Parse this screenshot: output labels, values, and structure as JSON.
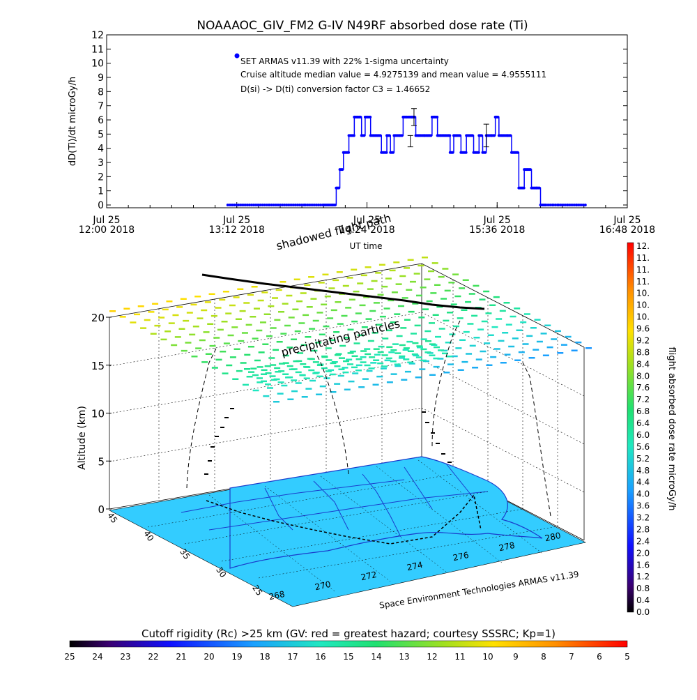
{
  "title": "NOAAAOC_GIV_FM2 G-IV    N49RF  absorbed dose rate (Ti)",
  "chart_data": [
    {
      "type": "line",
      "ylabel": "dD(Ti)/dt microGy/h",
      "xlabel": "UT time",
      "ylim": [
        0,
        12
      ],
      "xlim": [
        "12:00",
        "16:48"
      ],
      "yticks": [
        "0",
        "1",
        "2",
        "3",
        "4",
        "5",
        "6",
        "7",
        "8",
        "9",
        "10",
        "11",
        "12"
      ],
      "xtick_top": [
        "Jul 25",
        "Jul 25",
        "Jul 25",
        "Jul 25",
        "Jul 25"
      ],
      "xtick_bottom": [
        "12:00 2018",
        "13:12 2018",
        "14:24 2018",
        "15:36 2018",
        "16:48 2018"
      ],
      "legend": [
        "SET ARMAS v11.39 with 22% 1-sigma uncertainty",
        "Cruise altitude median value = 4.9275139 and mean value = 4.9555111",
        "D(si) -> D(ti) conversion factor C3 = 1.46652"
      ],
      "series": [
        {
          "color": "#0000ff",
          "x": [
            "13:07",
            "13:30",
            "13:50",
            "14:00",
            "14:05",
            "14:07",
            "14:09",
            "14:11",
            "14:14",
            "14:17",
            "14:19",
            "14:21",
            "14:23",
            "14:26",
            "14:28",
            "14:30",
            "14:32",
            "14:35",
            "14:37",
            "14:39",
            "14:42",
            "14:44",
            "14:46",
            "14:49",
            "14:51",
            "14:53",
            "14:56",
            "14:58",
            "15:00",
            "15:03",
            "15:05",
            "15:07",
            "15:10",
            "15:12",
            "15:14",
            "15:16",
            "15:19",
            "15:21",
            "15:23",
            "15:26",
            "15:28",
            "15:30",
            "15:33",
            "15:35",
            "15:37",
            "15:39",
            "15:42",
            "15:44",
            "15:46",
            "15:48",
            "15:51",
            "15:53",
            "15:55",
            "15:58",
            "16:00",
            "16:03",
            "16:07",
            "16:10",
            "16:15",
            "16:20",
            "16:25"
          ],
          "y": [
            0,
            0,
            0,
            0,
            0,
            1.2,
            2.5,
            3.7,
            4.9,
            6.2,
            6.2,
            4.9,
            6.2,
            4.9,
            4.9,
            4.9,
            3.7,
            4.9,
            3.7,
            4.9,
            4.9,
            6.2,
            6.2,
            6.2,
            4.9,
            4.9,
            4.9,
            4.9,
            6.2,
            4.9,
            4.9,
            4.9,
            3.7,
            4.9,
            4.9,
            3.7,
            4.9,
            4.9,
            3.7,
            4.9,
            3.7,
            4.9,
            4.9,
            6.2,
            4.9,
            4.9,
            4.9,
            3.7,
            3.7,
            1.2,
            2.5,
            2.5,
            1.2,
            1.2,
            0,
            0,
            0,
            0,
            0,
            0,
            0
          ]
        }
      ],
      "error_bars": [
        {
          "x": "14:50",
          "y": 6.2,
          "err": 0.6
        },
        {
          "x": "14:48",
          "y": 4.5,
          "err": 0.4
        },
        {
          "x": "15:30",
          "y": 4.9,
          "err": 0.8
        }
      ]
    },
    {
      "type": "scatter",
      "subtype": "3d-map",
      "zlabel": "Altitude (km)",
      "zticks": [
        "0",
        "5",
        "10",
        "15",
        "20"
      ],
      "lat_ticks": [
        "45",
        "40",
        "35",
        "30",
        "25"
      ],
      "lon_ticks": [
        "268",
        "270",
        "272",
        "274",
        "276",
        "278",
        "280"
      ],
      "annotations": [
        "shadowed flight path",
        "precipitating particles"
      ],
      "footer": "Space Environment Technologies ARMAS v11.39"
    },
    {
      "type": "colorbar",
      "orientation": "vertical",
      "label": "flight absorbed dose rate microGy/h",
      "ticks": [
        "12.",
        "11.",
        "11.",
        "11.",
        "10.",
        "10.",
        "10.",
        "9.6",
        "9.2",
        "8.8",
        "8.4",
        "8.0",
        "7.6",
        "7.2",
        "6.8",
        "6.4",
        "6.0",
        "5.6",
        "5.2",
        "4.8",
        "4.4",
        "4.0",
        "3.6",
        "3.2",
        "2.8",
        "2.4",
        "2.0",
        "1.6",
        "1.2",
        "0.8",
        "0.4",
        "0.0"
      ]
    },
    {
      "type": "colorbar",
      "orientation": "horizontal",
      "label": "Cutoff rigidity (Rc) >25 km (GV: red = greatest hazard; courtesy SSSRC; Kp=1)",
      "ticks": [
        "25",
        "24",
        "23",
        "22",
        "21",
        "20",
        "19",
        "18",
        "17",
        "16",
        "15",
        "14",
        "13",
        "12",
        "11",
        "10",
        "9",
        "8",
        "7",
        "6",
        "5"
      ]
    }
  ],
  "colors": {
    "series": "#0000ff",
    "land": "#33ccff",
    "coast": "#0033cc",
    "track": "#000000"
  }
}
